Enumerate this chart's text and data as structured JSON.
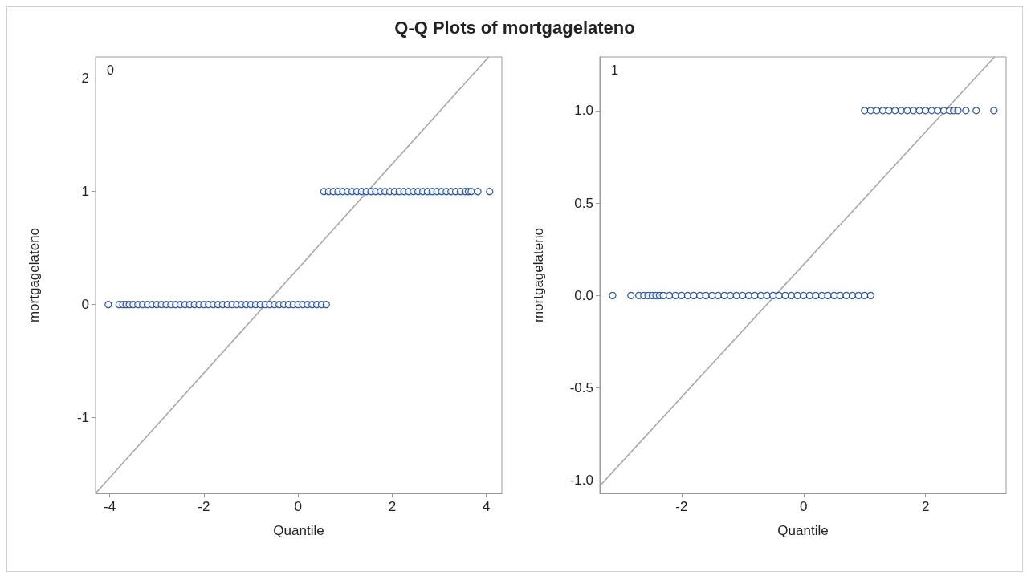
{
  "chart_data": [
    {
      "type": "scatter",
      "title": "Q-Q Plots of mortgagelateno",
      "xlabel": "Quantile",
      "ylabel": "mortgagelateno",
      "annotations": [
        "0"
      ],
      "xlim": [
        -4.3,
        4.33
      ],
      "ylim": [
        -1.67,
        2.19
      ],
      "xticks": [
        -4,
        -2,
        0,
        2,
        4
      ],
      "yticks": [
        -1,
        0,
        1,
        2
      ],
      "grid": false,
      "series": [
        {
          "type": "line",
          "color": "#a8a8a8",
          "x": [
            -4.3,
            4.05
          ],
          "values": [
            -1.67,
            2.19
          ]
        },
        {
          "color": "#003399",
          "marker": "circle",
          "x": [
            -4.03,
            -3.8,
            -3.72,
            -3.65,
            -3.58,
            -3.5,
            -3.4,
            -3.3,
            -3.2,
            -3.1,
            -3.0,
            -2.9,
            -2.8,
            -2.7,
            -2.6,
            -2.5,
            -2.4,
            -2.3,
            -2.2,
            -2.1,
            -2.0,
            -1.9,
            -1.8,
            -1.7,
            -1.6,
            -1.5,
            -1.4,
            -1.3,
            -1.2,
            -1.1,
            -1.0,
            -0.9,
            -0.8,
            -0.7,
            -0.6,
            -0.5,
            -0.4,
            -0.3,
            -0.2,
            -0.1,
            0,
            0.1,
            0.2,
            0.3,
            0.4,
            0.5,
            0.6
          ],
          "values": [
            0,
            0,
            0,
            0,
            0,
            0,
            0,
            0,
            0,
            0,
            0,
            0,
            0,
            0,
            0,
            0,
            0,
            0,
            0,
            0,
            0,
            0,
            0,
            0,
            0,
            0,
            0,
            0,
            0,
            0,
            0,
            0,
            0,
            0,
            0,
            0,
            0,
            0,
            0,
            0,
            0,
            0,
            0,
            0,
            0,
            0,
            0
          ]
        },
        {
          "color": "#003399",
          "marker": "circle",
          "x": [
            0.55,
            0.65,
            0.75,
            0.85,
            0.95,
            1.05,
            1.15,
            1.25,
            1.35,
            1.45,
            1.55,
            1.65,
            1.75,
            1.85,
            1.95,
            2.05,
            2.15,
            2.25,
            2.35,
            2.45,
            2.55,
            2.65,
            2.75,
            2.85,
            2.95,
            3.05,
            3.15,
            3.25,
            3.35,
            3.45,
            3.55,
            3.62,
            3.68,
            3.82,
            4.07
          ],
          "values": [
            1,
            1,
            1,
            1,
            1,
            1,
            1,
            1,
            1,
            1,
            1,
            1,
            1,
            1,
            1,
            1,
            1,
            1,
            1,
            1,
            1,
            1,
            1,
            1,
            1,
            1,
            1,
            1,
            1,
            1,
            1,
            1,
            1,
            1,
            1
          ]
        }
      ]
    },
    {
      "type": "scatter",
      "xlabel": "Quantile",
      "ylabel": "mortgagelateno",
      "annotations": [
        "1"
      ],
      "xlim": [
        -3.34,
        3.32
      ],
      "ylim": [
        -1.07,
        1.29
      ],
      "xticks": [
        -2,
        0,
        2
      ],
      "yticks": [
        {
          "value": -1,
          "label": "-1.0"
        },
        -0.5,
        {
          "value": 0,
          "label": "0.0"
        },
        0.5,
        {
          "value": 1,
          "label": "1.0"
        }
      ],
      "grid": false,
      "series": [
        {
          "type": "line",
          "color": "#a8a8a8",
          "x": [
            -3.34,
            3.13
          ],
          "values": [
            -1.03,
            1.29
          ]
        },
        {
          "color": "#003399",
          "marker": "circle",
          "x": [
            -3.13,
            -2.83,
            -2.7,
            -2.62,
            -2.55,
            -2.48,
            -2.42,
            -2.36,
            -2.3,
            -2.2,
            -2.1,
            -2.0,
            -1.9,
            -1.8,
            -1.7,
            -1.6,
            -1.5,
            -1.4,
            -1.3,
            -1.2,
            -1.1,
            -1.0,
            -0.9,
            -0.8,
            -0.7,
            -0.6,
            -0.5,
            -0.4,
            -0.3,
            -0.2,
            -0.1,
            0,
            0.1,
            0.2,
            0.3,
            0.4,
            0.5,
            0.6,
            0.7,
            0.8,
            0.9,
            1.0,
            1.1
          ],
          "values": [
            0,
            0,
            0,
            0,
            0,
            0,
            0,
            0,
            0,
            0,
            0,
            0,
            0,
            0,
            0,
            0,
            0,
            0,
            0,
            0,
            0,
            0,
            0,
            0,
            0,
            0,
            0,
            0,
            0,
            0,
            0,
            0,
            0,
            0,
            0,
            0,
            0,
            0,
            0,
            0,
            0,
            0,
            0
          ]
        },
        {
          "color": "#003399",
          "marker": "circle",
          "x": [
            1.0,
            1.1,
            1.2,
            1.3,
            1.4,
            1.5,
            1.6,
            1.7,
            1.8,
            1.9,
            2.0,
            2.1,
            2.2,
            2.3,
            2.4,
            2.46,
            2.53,
            2.66,
            2.83,
            3.12
          ],
          "values": [
            1,
            1,
            1,
            1,
            1,
            1,
            1,
            1,
            1,
            1,
            1,
            1,
            1,
            1,
            1,
            1,
            1,
            1,
            1,
            1
          ]
        }
      ]
    }
  ]
}
